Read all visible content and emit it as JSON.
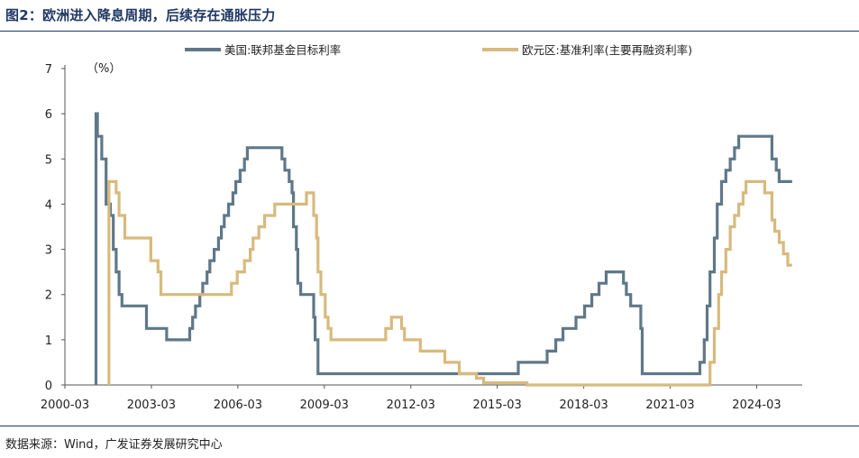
{
  "header": {
    "title": "图2：欧洲进入降息周期，后续存在通胀压力"
  },
  "footer": {
    "source": "数据来源：Wind，广发证券发展研究中心"
  },
  "colors": {
    "us": "#5f7889",
    "eu": "#d8ba7e",
    "rule": "#1f3864"
  },
  "chart_data": {
    "type": "line",
    "title": "",
    "xlabel": "",
    "ylabel": "",
    "unit_label": "（%）",
    "xlim": [
      2000.17,
      2025.75
    ],
    "ylim": [
      0,
      7
    ],
    "yticks": [
      0,
      1,
      2,
      3,
      4,
      5,
      6,
      7
    ],
    "xticks": [
      {
        "label": "2000-03",
        "t": 2000.17
      },
      {
        "label": "2003-03",
        "t": 2003.17
      },
      {
        "label": "2006-03",
        "t": 2006.17
      },
      {
        "label": "2009-03",
        "t": 2009.17
      },
      {
        "label": "2012-03",
        "t": 2012.17
      },
      {
        "label": "2015-03",
        "t": 2015.17
      },
      {
        "label": "2018-03",
        "t": 2018.17
      },
      {
        "label": "2021-03",
        "t": 2021.17
      },
      {
        "label": "2024-03",
        "t": 2024.17
      }
    ],
    "legend_position": "top",
    "series": [
      {
        "name": "美国:联邦基金目标利率",
        "steps": [
          [
            2001.25,
            6.0
          ],
          [
            2001.3,
            5.5
          ],
          [
            2001.45,
            5.0
          ],
          [
            2001.6,
            4.0
          ],
          [
            2001.75,
            3.75
          ],
          [
            2001.85,
            3.0
          ],
          [
            2001.95,
            2.5
          ],
          [
            2002.05,
            2.0
          ],
          [
            2002.15,
            1.75
          ],
          [
            2003.0,
            1.25
          ],
          [
            2003.7,
            1.0
          ],
          [
            2004.5,
            1.25
          ],
          [
            2004.6,
            1.5
          ],
          [
            2004.7,
            1.75
          ],
          [
            2004.85,
            2.0
          ],
          [
            2004.95,
            2.25
          ],
          [
            2005.1,
            2.5
          ],
          [
            2005.2,
            2.75
          ],
          [
            2005.35,
            3.0
          ],
          [
            2005.5,
            3.25
          ],
          [
            2005.6,
            3.5
          ],
          [
            2005.7,
            3.75
          ],
          [
            2005.85,
            4.0
          ],
          [
            2006.0,
            4.25
          ],
          [
            2006.1,
            4.5
          ],
          [
            2006.25,
            4.75
          ],
          [
            2006.4,
            5.0
          ],
          [
            2006.5,
            5.25
          ],
          [
            2007.7,
            5.0
          ],
          [
            2007.8,
            4.75
          ],
          [
            2007.95,
            4.5
          ],
          [
            2008.05,
            4.25
          ],
          [
            2008.1,
            3.5
          ],
          [
            2008.2,
            3.0
          ],
          [
            2008.25,
            2.25
          ],
          [
            2008.35,
            2.0
          ],
          [
            2008.8,
            1.5
          ],
          [
            2008.85,
            1.0
          ],
          [
            2008.95,
            0.25
          ],
          [
            2015.9,
            0.5
          ],
          [
            2016.9,
            0.75
          ],
          [
            2017.2,
            1.0
          ],
          [
            2017.45,
            1.25
          ],
          [
            2017.9,
            1.5
          ],
          [
            2018.2,
            1.75
          ],
          [
            2018.45,
            2.0
          ],
          [
            2018.7,
            2.25
          ],
          [
            2018.95,
            2.5
          ],
          [
            2019.55,
            2.25
          ],
          [
            2019.65,
            2.0
          ],
          [
            2019.8,
            1.75
          ],
          [
            2020.15,
            1.25
          ],
          [
            2020.2,
            0.25
          ],
          [
            2022.2,
            0.5
          ],
          [
            2022.35,
            1.0
          ],
          [
            2022.45,
            1.75
          ],
          [
            2022.55,
            2.5
          ],
          [
            2022.7,
            3.25
          ],
          [
            2022.8,
            4.0
          ],
          [
            2022.95,
            4.5
          ],
          [
            2023.1,
            4.75
          ],
          [
            2023.25,
            5.0
          ],
          [
            2023.4,
            5.25
          ],
          [
            2023.55,
            5.5
          ],
          [
            2024.7,
            5.0
          ],
          [
            2024.85,
            4.75
          ],
          [
            2024.95,
            4.5
          ],
          [
            2025.4,
            4.5
          ]
        ]
      },
      {
        "name": "欧元区:基准利率(主要再融资利率)",
        "steps": [
          [
            2001.7,
            4.5
          ],
          [
            2001.95,
            4.25
          ],
          [
            2002.05,
            3.75
          ],
          [
            2002.25,
            3.25
          ],
          [
            2003.15,
            2.75
          ],
          [
            2003.4,
            2.5
          ],
          [
            2003.5,
            2.0
          ],
          [
            2005.95,
            2.25
          ],
          [
            2006.15,
            2.5
          ],
          [
            2006.4,
            2.75
          ],
          [
            2006.6,
            3.0
          ],
          [
            2006.7,
            3.25
          ],
          [
            2006.9,
            3.5
          ],
          [
            2007.1,
            3.75
          ],
          [
            2007.45,
            4.0
          ],
          [
            2008.55,
            4.25
          ],
          [
            2008.8,
            3.75
          ],
          [
            2008.9,
            3.25
          ],
          [
            2008.95,
            2.5
          ],
          [
            2009.05,
            2.0
          ],
          [
            2009.2,
            1.5
          ],
          [
            2009.3,
            1.25
          ],
          [
            2009.4,
            1.0
          ],
          [
            2011.3,
            1.25
          ],
          [
            2011.5,
            1.5
          ],
          [
            2011.85,
            1.25
          ],
          [
            2011.95,
            1.0
          ],
          [
            2012.5,
            0.75
          ],
          [
            2013.35,
            0.5
          ],
          [
            2013.85,
            0.25
          ],
          [
            2014.45,
            0.15
          ],
          [
            2014.7,
            0.05
          ],
          [
            2016.2,
            0.0
          ],
          [
            2022.55,
            0.5
          ],
          [
            2022.7,
            1.25
          ],
          [
            2022.85,
            2.0
          ],
          [
            2022.95,
            2.5
          ],
          [
            2023.1,
            3.0
          ],
          [
            2023.25,
            3.5
          ],
          [
            2023.4,
            3.75
          ],
          [
            2023.55,
            4.0
          ],
          [
            2023.7,
            4.25
          ],
          [
            2023.8,
            4.5
          ],
          [
            2024.45,
            4.25
          ],
          [
            2024.7,
            3.65
          ],
          [
            2024.8,
            3.4
          ],
          [
            2024.95,
            3.15
          ],
          [
            2025.1,
            2.9
          ],
          [
            2025.25,
            2.65
          ],
          [
            2025.4,
            2.65
          ]
        ]
      }
    ]
  }
}
